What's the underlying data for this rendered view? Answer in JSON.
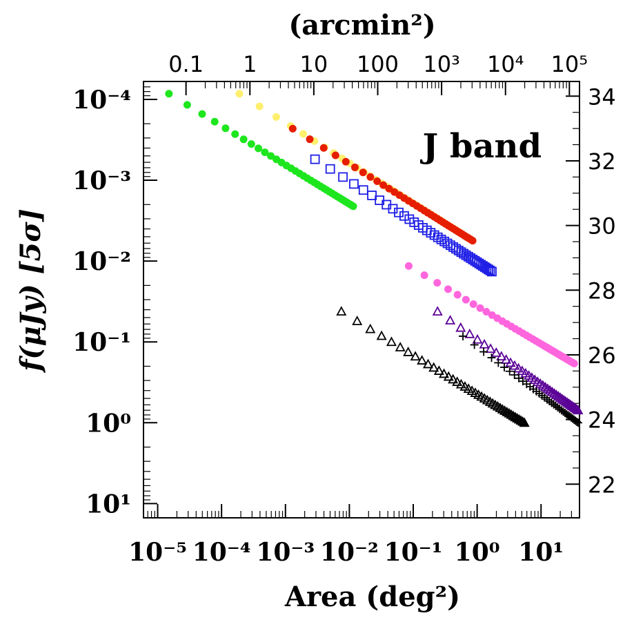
{
  "chart_data": {
    "type": "scatter",
    "annotation": "J band",
    "xlabel": "Area (deg²)",
    "ylabel": "f(μJy) [5σ]",
    "x2label": "(arcmin²)",
    "xscale": "log",
    "yscale": "log",
    "xlim": [
      6e-06,
      40
    ],
    "ylim": [
      6e-05,
      15
    ],
    "y_inverted": true,
    "grid": false,
    "legend": "none",
    "x_ticks": [
      {
        "value": 1e-05,
        "label": "10⁻⁵"
      },
      {
        "value": 0.0001,
        "label": "10⁻⁴"
      },
      {
        "value": 0.001,
        "label": "10⁻³"
      },
      {
        "value": 0.01,
        "label": "10⁻²"
      },
      {
        "value": 0.1,
        "label": "10⁻¹"
      },
      {
        "value": 1,
        "label": "10⁰"
      },
      {
        "value": 10,
        "label": "10¹"
      }
    ],
    "y_ticks": [
      {
        "value": 0.0001,
        "label": "10⁻⁴"
      },
      {
        "value": 0.001,
        "label": "10⁻³"
      },
      {
        "value": 0.01,
        "label": "10⁻²"
      },
      {
        "value": 0.1,
        "label": "10⁻¹"
      },
      {
        "value": 1,
        "label": "10⁰"
      },
      {
        "value": 10,
        "label": "10¹"
      }
    ],
    "x2_ticks": [
      {
        "value": 0.1,
        "label": "0.1"
      },
      {
        "value": 1,
        "label": "1"
      },
      {
        "value": 10,
        "label": "10"
      },
      {
        "value": 100,
        "label": "100"
      },
      {
        "value": 1000,
        "label": "10³"
      },
      {
        "value": 10000,
        "label": "10⁴"
      },
      {
        "value": 100000,
        "label": "10⁵"
      }
    ],
    "y2_ticks": [
      {
        "value": 22,
        "label": "22"
      },
      {
        "value": 24,
        "label": "24"
      },
      {
        "value": 26,
        "label": "26"
      },
      {
        "value": 28,
        "label": "28"
      },
      {
        "value": 30,
        "label": "30"
      },
      {
        "value": 32,
        "label": "32"
      },
      {
        "value": 34,
        "label": "34"
      }
    ],
    "series": [
      {
        "color": "#1ee61e",
        "marker": "filled-circle",
        "x_start": 1.5e-05,
        "x_end": 0.0115,
        "y_start": 8.5e-05,
        "y_end": 0.0021,
        "n": 36
      },
      {
        "color": "#ffef6e",
        "marker": "filled-circle",
        "x_start": 0.00019,
        "x_end": 0.85,
        "y_start": 8.5e-05,
        "y_end": 0.0056,
        "n": 42
      },
      {
        "color": "#e61e00",
        "marker": "filled-circle",
        "x_start": 0.0013,
        "x_end": 0.85,
        "y_start": 0.00023,
        "y_end": 0.0056,
        "n": 38
      },
      {
        "color": "#1e1ee6",
        "marker": "open-square",
        "x_start": 0.0029,
        "x_end": 1.7,
        "y_start": 0.00055,
        "y_end": 0.0135,
        "n": 42
      },
      {
        "color": "#ff66dd",
        "marker": "filled-circle",
        "x_start": 0.085,
        "x_end": 33,
        "y_start": 0.0115,
        "y_end": 0.185,
        "n": 38
      },
      {
        "color": "#000000",
        "marker": "open-triangle",
        "x_start": 0.0075,
        "x_end": 5.5,
        "y_start": 0.042,
        "y_end": 1.0,
        "n": 42
      },
      {
        "color": "#5a0096",
        "marker": "open-triangle",
        "x_start": 0.24,
        "x_end": 38,
        "y_start": 0.042,
        "y_end": 0.7,
        "n": 40
      },
      {
        "color": "#000000",
        "marker": "plus",
        "x_start": 0.6,
        "x_end": 38,
        "y_start": 0.085,
        "y_end": 1.0,
        "n": 36
      }
    ]
  }
}
